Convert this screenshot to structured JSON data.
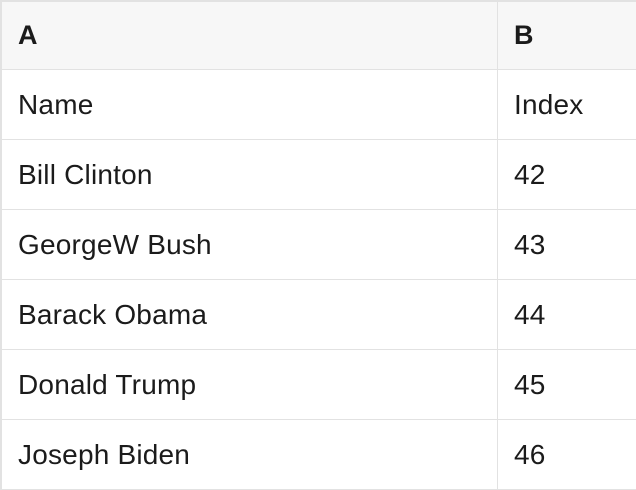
{
  "colors": {
    "text": "#1b1b1b",
    "border": "#e2e2e2",
    "header_bg": "#f7f7f7",
    "cell_bg": "#ffffff"
  },
  "table": {
    "column_headers": [
      "A",
      "B"
    ],
    "field_labels": [
      "Name",
      "Index"
    ],
    "rows": [
      [
        "Name",
        "Index"
      ],
      [
        "Bill Clinton",
        "42"
      ],
      [
        "GeorgeW Bush",
        "43"
      ],
      [
        "Barack Obama",
        "44"
      ],
      [
        "Donald Trump",
        "45"
      ],
      [
        "Joseph Biden",
        "46"
      ]
    ]
  }
}
